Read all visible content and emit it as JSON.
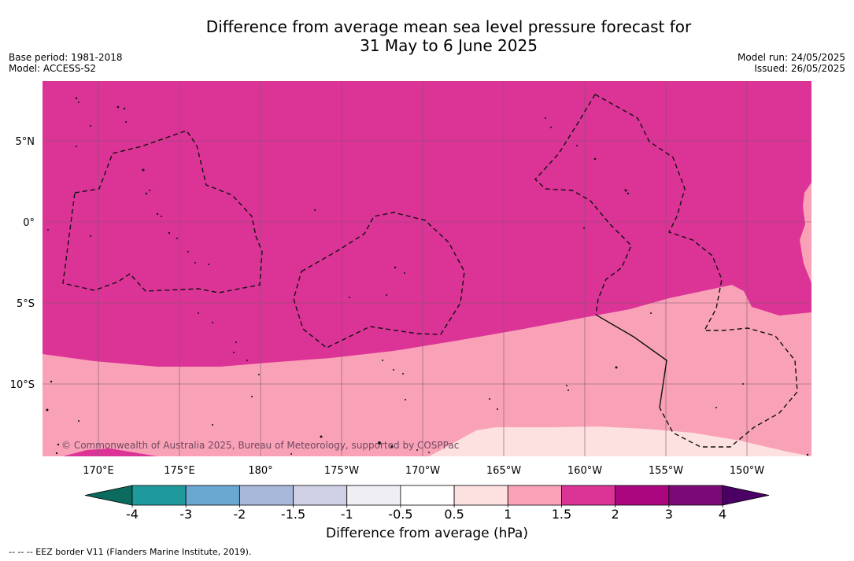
{
  "title_line1": "Difference from average mean sea level pressure forecast for",
  "title_line2": "31 May to 6 June 2025",
  "base_period": "Base period: 1981-2018",
  "model": "Model: ACCESS-S2",
  "model_run": "Model run: 24/05/2025",
  "issued": "Issued: 26/05/2025",
  "lon_labels": [
    "170°E",
    "175°E",
    "180°",
    "175°W",
    "170°W",
    "165°W",
    "160°W",
    "155°W",
    "150°W"
  ],
  "lat_labels": [
    "5°N",
    "0°",
    "5°S",
    "10°S"
  ],
  "copyright": "© Commonwealth of Australia 2025, Bureau of Meteorology, supported by COSPPac",
  "colorbar": {
    "title": "Difference from average (hPa)",
    "tick_labels": [
      "-4",
      "-3",
      "-2",
      "-1.5",
      "-1",
      "-0.5",
      "0.5",
      "1",
      "1.5",
      "2",
      "3",
      "4"
    ],
    "colors": [
      "#0b6b5e",
      "#1f9a9c",
      "#6aa7d1",
      "#a7b8da",
      "#cfd0e6",
      "#efeef3",
      "#ffffff",
      "#fde0e0",
      "#f9a2b7",
      "#dc3397",
      "#ab0580",
      "#7a0a78",
      "#4a0065"
    ]
  },
  "legend_footnote": "--  --  -- EEZ border V11 (Flanders Marine Institute, 2019)."
}
